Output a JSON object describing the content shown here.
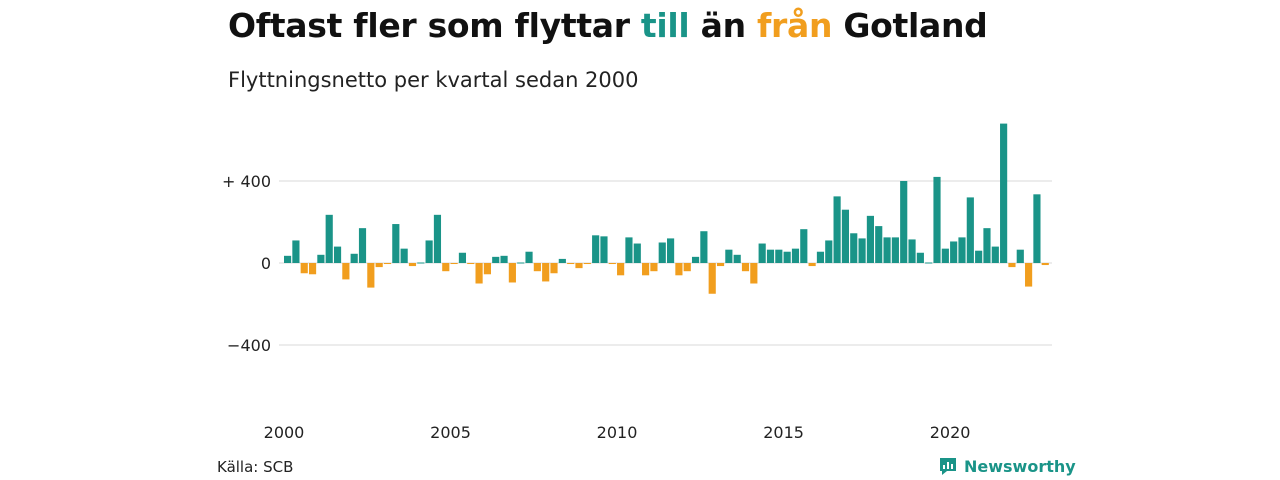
{
  "header": {
    "title_part1": "Oftast fler som flyttar ",
    "title_till": "till",
    "title_part2": " än ",
    "title_fran": "från",
    "title_part3": " Gotland",
    "subtitle": "Flyttningsnetto per kvartal sedan 2000"
  },
  "footer": {
    "source": "Källa: SCB",
    "brand": "Newsworthy"
  },
  "colors": {
    "positive": "#1a9488",
    "negative": "#f19e1e",
    "grid": "#d8d8d8"
  },
  "chart_data": {
    "type": "bar",
    "title": "Oftast fler som flyttar till än från Gotland",
    "subtitle": "Flyttningsnetto per kvartal sedan 2000",
    "xlabel": "",
    "ylabel": "",
    "x_ticks": [
      "2000",
      "2005",
      "2010",
      "2015",
      "2020"
    ],
    "y_ticks": [
      {
        "value": 400,
        "label": "+ 400"
      },
      {
        "value": 0,
        "label": "0"
      },
      {
        "value": -400,
        "label": "−400"
      }
    ],
    "ylim": [
      -620,
      700
    ],
    "start_year": 2000,
    "values": [
      35,
      110,
      -50,
      -55,
      40,
      235,
      80,
      -80,
      45,
      170,
      -120,
      -20,
      -5,
      190,
      70,
      -15,
      0,
      110,
      235,
      -40,
      -5,
      50,
      -5,
      -100,
      -55,
      30,
      35,
      -95,
      0,
      55,
      -40,
      -90,
      -50,
      20,
      -5,
      -25,
      -5,
      135,
      130,
      -5,
      -60,
      125,
      95,
      -60,
      -40,
      100,
      120,
      -60,
      -40,
      30,
      155,
      -150,
      -15,
      65,
      40,
      -40,
      -100,
      95,
      65,
      65,
      55,
      70,
      165,
      -15,
      55,
      110,
      325,
      260,
      145,
      120,
      230,
      180,
      125,
      125,
      400,
      115,
      50,
      0,
      420,
      70,
      105,
      125,
      320,
      60,
      170,
      80,
      680,
      -20,
      65,
      -115,
      335,
      -10
    ]
  }
}
